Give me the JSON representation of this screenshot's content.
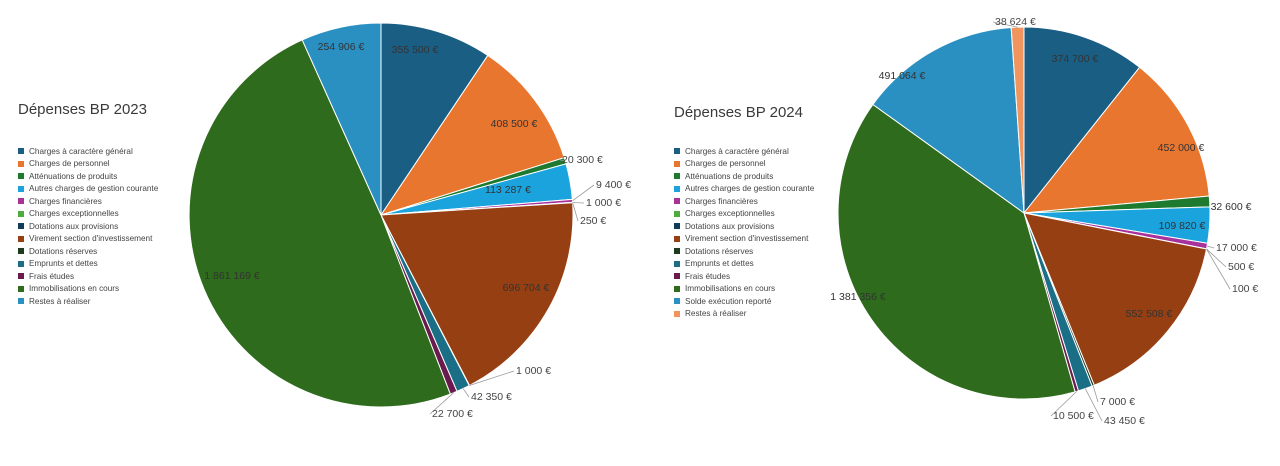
{
  "chart_data": [
    {
      "type": "pie",
      "title": "Dépenses BP 2023",
      "legend_position": "left",
      "slices": [
        {
          "name": "Charges à caractère général",
          "value": 355500,
          "label": "355 500 €",
          "color": "#1a5e84"
        },
        {
          "name": "Charges de personnel",
          "value": 408500,
          "label": "408 500 €",
          "color": "#e8762f"
        },
        {
          "name": "Atténuations de produits",
          "value": 20300,
          "label": "20 300 €",
          "color": "#1d7a2e"
        },
        {
          "name": "Autres charges de gestion courante",
          "value": 113287,
          "label": "113 287 €",
          "color": "#1aa3dc"
        },
        {
          "name": "Charges financières",
          "value": 9400,
          "label": "9 400 €",
          "color": "#a8329c"
        },
        {
          "name": "Charges exceptionnelles",
          "value": 1000,
          "label": "1 000 €",
          "color": "#4eab3d"
        },
        {
          "name": "Dotations aux provisions",
          "value": 250,
          "label": "250 €",
          "color": "#103c5a"
        },
        {
          "name": "Virement section d'investissement",
          "value": 696704,
          "label": "696 704 €",
          "color": "#963f12"
        },
        {
          "name": "Dotations réserves",
          "value": 1000,
          "label": "1 000 €",
          "color": "#1d3a1d"
        },
        {
          "name": "Emprunts et dettes",
          "value": 42350,
          "label": "42 350 €",
          "color": "#1a6f87"
        },
        {
          "name": "Frais études",
          "value": 22700,
          "label": "22 700 €",
          "color": "#6a1b4e"
        },
        {
          "name": "Immobilisations en cours",
          "value": 1861169,
          "label": "1 861 169 €",
          "color": "#2e6b1c"
        },
        {
          "name": "Restes à réaliser",
          "value": 254906,
          "label": "254 906 €",
          "color": "#2a90c2"
        }
      ]
    },
    {
      "type": "pie",
      "title": "Dépenses BP 2024",
      "legend_position": "left",
      "slices": [
        {
          "name": "Charges à caractère général",
          "value": 374700,
          "label": "374 700 €",
          "color": "#1a5e84"
        },
        {
          "name": "Charges de personnel",
          "value": 452000,
          "label": "452 000 €",
          "color": "#e8762f"
        },
        {
          "name": "Atténuations de produits",
          "value": 32600,
          "label": "32 600 €",
          "color": "#1d7a2e"
        },
        {
          "name": "Autres charges de gestion courante",
          "value": 109820,
          "label": "109 820 €",
          "color": "#1aa3dc"
        },
        {
          "name": "Charges financières",
          "value": 17000,
          "label": "17 000 €",
          "color": "#a8329c"
        },
        {
          "name": "Charges exceptionnelles",
          "value": 500,
          "label": "500 €",
          "color": "#4eab3d"
        },
        {
          "name": "Dotations aux provisions",
          "value": 100,
          "label": "100 €",
          "color": "#103c5a"
        },
        {
          "name": "Virement section d'investissement",
          "value": 552508,
          "label": "552 508 €",
          "color": "#963f12"
        },
        {
          "name": "Dotations réserves",
          "value": 7000,
          "label": "7 000 €",
          "color": "#1d3a1d"
        },
        {
          "name": "Emprunts et dettes",
          "value": 43450,
          "label": "43 450 €",
          "color": "#1a6f87"
        },
        {
          "name": "Frais études",
          "value": 10500,
          "label": "10 500 €",
          "color": "#6a1b4e"
        },
        {
          "name": "Immobilisations en cours",
          "value": 1381356,
          "label": "1 381 356 €",
          "color": "#2e6b1c"
        },
        {
          "name": "Solde exécution reporté",
          "value": 491064,
          "label": "491 064 €",
          "color": "#2a90c2"
        },
        {
          "name": "Restes à réaliser",
          "value": 38624,
          "label": "38 624 €",
          "color": "#f0955e"
        }
      ]
    }
  ]
}
